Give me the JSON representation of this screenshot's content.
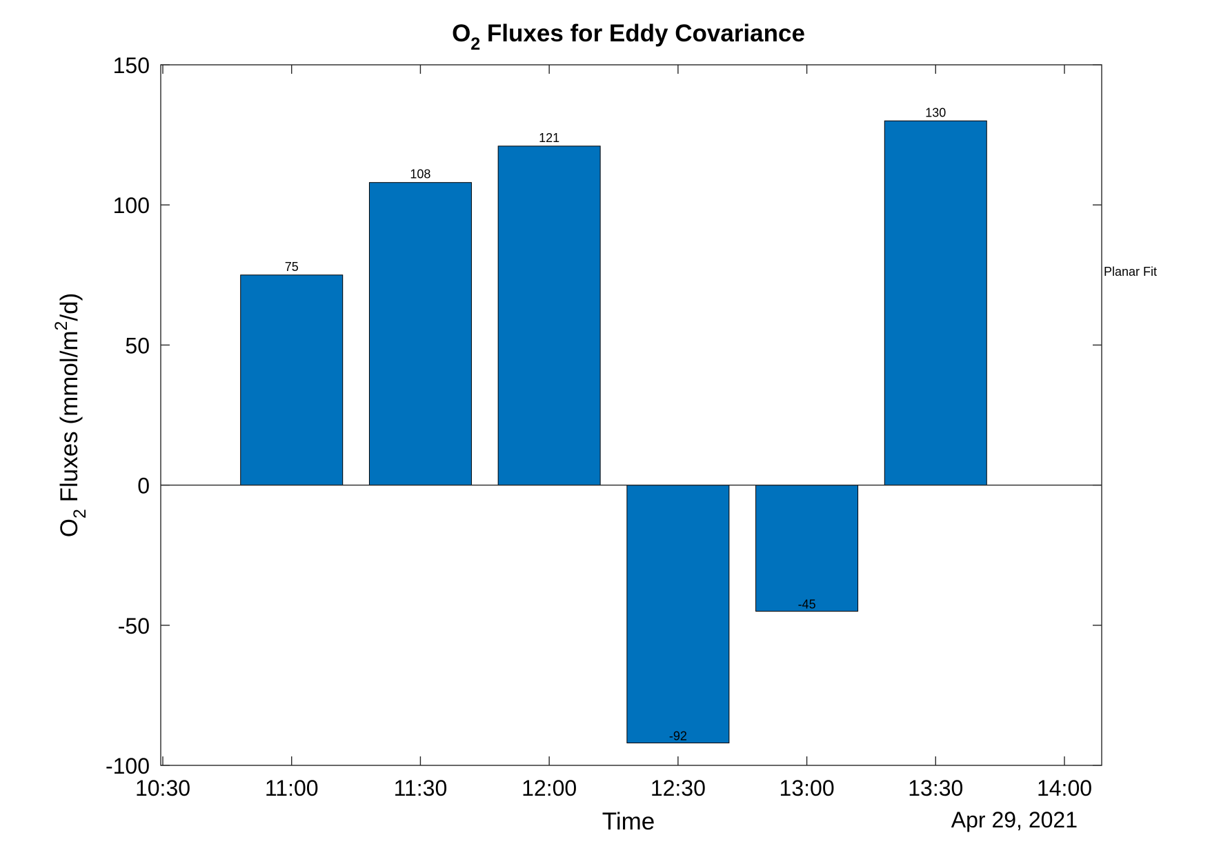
{
  "chart_data": {
    "type": "bar",
    "title": {
      "prefix": "O",
      "subscript": "2",
      "suffix": " Fluxes for Eddy Covariance"
    },
    "xlabel": "Time",
    "ylabel": {
      "prefix": "O",
      "subscript": "2",
      "middle": " Fluxes (mmol/m",
      "superscript": "2",
      "suffix": "/d)"
    },
    "x_date_label": "Apr 29, 2021",
    "annotation": "Planar Fit",
    "x_ticks": [
      "10:30",
      "11:00",
      "11:30",
      "12:00",
      "12:30",
      "13:00",
      "13:30",
      "14:00"
    ],
    "y_ticks": [
      150,
      100,
      50,
      0,
      -50,
      -100
    ],
    "ylim": [
      -100,
      150
    ],
    "xlim": [
      "10:30",
      "14:00"
    ],
    "grid": false,
    "bar_color": "#0072BD",
    "series": [
      {
        "x": [
          "11:00",
          "11:30",
          "12:00",
          "12:30",
          "13:00",
          "13:30"
        ],
        "values": [
          75,
          108,
          121,
          -92,
          -45,
          130
        ],
        "labels": [
          "75",
          "108",
          "121",
          "-92",
          "-45",
          "130"
        ]
      }
    ]
  }
}
